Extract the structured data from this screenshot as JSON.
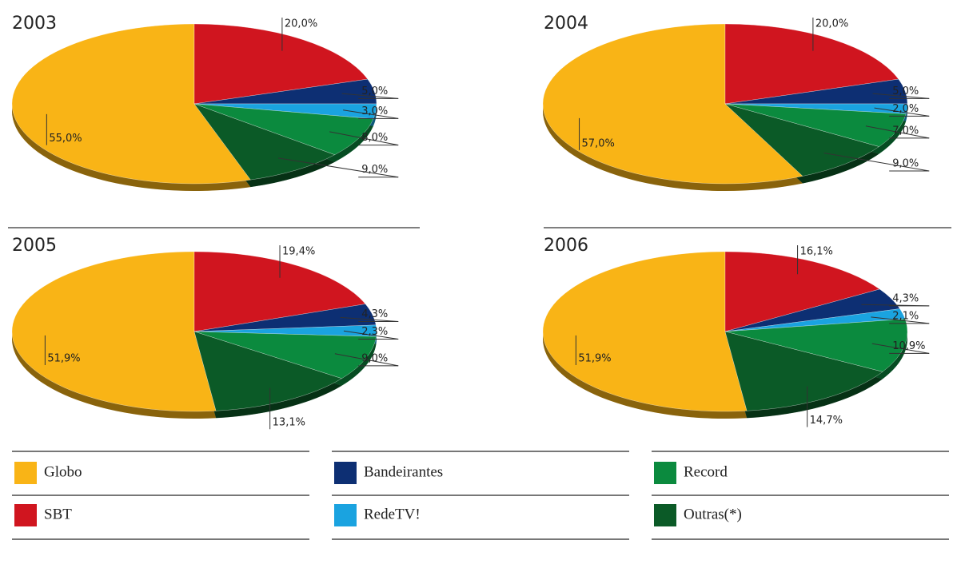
{
  "chart_data": [
    {
      "type": "pie",
      "title": "2003",
      "values": [
        55,
        20,
        5,
        3,
        8,
        9
      ],
      "value_labels": [
        "55,0%",
        "20,0%",
        "5,0%",
        "3,0%",
        "8,0%",
        "9,0%"
      ]
    },
    {
      "type": "pie",
      "title": "2004",
      "values": [
        57,
        20,
        5,
        2,
        7,
        9
      ],
      "value_labels": [
        "57,0%",
        "20,0%",
        "5,0%",
        "2,0%",
        "7,0%",
        "9,0%"
      ]
    },
    {
      "type": "pie",
      "title": "2005",
      "values": [
        51.9,
        19.4,
        4.3,
        2.3,
        9.0,
        13.1
      ],
      "value_labels": [
        "51,9%",
        "19,4%",
        "4,3%",
        "2,3%",
        "9,0%",
        "13,1%"
      ]
    },
    {
      "type": "pie",
      "title": "2006",
      "values": [
        51.9,
        16.1,
        4.3,
        2.1,
        10.9,
        14.7
      ],
      "value_labels": [
        "51,9%",
        "16,1%",
        "4,3%",
        "2,1%",
        "10,9%",
        "14,7%"
      ]
    }
  ],
  "legend": {
    "labels": [
      "Globo",
      "SBT",
      "Bandeirantes",
      "RedeTV!",
      "Record",
      "Outras(*)"
    ],
    "colors": [
      "#f9b416",
      "#d0151f",
      "#0d2f73",
      "#1aa3e0",
      "#0b8a3e",
      "#0b5a27"
    ]
  }
}
